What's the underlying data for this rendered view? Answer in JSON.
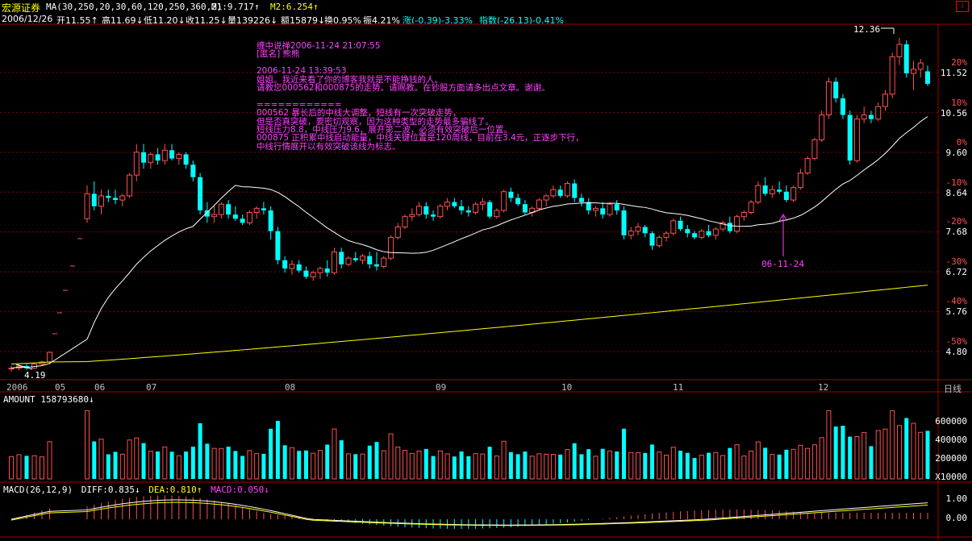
{
  "header": {
    "brand": "宏源证券",
    "ma_params": "MA(30,250,20,30,60,120,250,360,2)",
    "m1": "M1:9.717↑",
    "m2": "M2:6.254↑"
  },
  "quote": {
    "date": "2006/12/26",
    "open": "开11.55↑",
    "high": "高11.69↓",
    "low": "低11.20↓",
    "close": "收11.25↓",
    "volume": "量139226↓",
    "amount": "额15879↓",
    "turnover": "换0.95%",
    "amplitude": "振4.21%",
    "change": "涨(-0.39)-3.33%",
    "index": "指数(-26.13)-0.41%"
  },
  "price_axis": {
    "pct": [
      "20%",
      "10%",
      "0%",
      "-10%",
      "-20%",
      "-30%",
      "-40%",
      "-50%"
    ],
    "price": [
      "11.52",
      "10.56",
      "9.60",
      "8.64",
      "7.68",
      "6.72",
      "5.76",
      "4.80"
    ]
  },
  "annotations": {
    "high_label": "12.36",
    "low_label": "4.19",
    "marker_label": "06-11-24"
  },
  "note_text": "缠中说禅2006-11-24 21:07:55\n[匿名] 熊熊\n\n2006-11-24 13:39:53\n姐姐。我近来看了你的博客我就是不能挣钱的人。\n请教您000562和000875的走势。请赐教。在钞股方面请多出点文章。谢谢。\n\n============\n000562 暴长后的中线大调整，短线有一次突破走势，\n但是否真突破，要密切观察，因为这种类型的走势最多骗线了。\n短线压力8.8，中线压力9.6，展开第二波，必须有效突破后一位置。\n000875 正积累中线启动能量，中线关键位置是120周线，目前在3.4元，正逐步下行，\n中线行情展开以有效突破该线为标志。",
  "time_axis": {
    "labels": [
      "2006",
      "05",
      "06",
      "07",
      "08",
      "09",
      "10",
      "11",
      "12"
    ],
    "period": "日线"
  },
  "volume_panel": {
    "title": "AMOUNT 158793680↓",
    "axis": [
      "600000",
      "400000",
      "200000"
    ],
    "unit": "X10000"
  },
  "macd_panel": {
    "params": "MACD(26,12,9)",
    "diff": "DIFF:0.835↓",
    "dea": "DEA:0.810↑",
    "macd": "MACD:0.050↓",
    "axis": [
      "1.00",
      "0.00"
    ]
  },
  "colors": {
    "up": "#ff5050",
    "down": "#00ffff",
    "ma1": "#ffffff",
    "ma2": "#ffff00",
    "grid": "#8b0000",
    "annotation": "#ff40ff"
  },
  "chart_data": {
    "type": "candlestick",
    "price_range": [
      4.19,
      12.36
    ],
    "ohlc_approx": [
      [
        4.38,
        4.45,
        4.32,
        4.4
      ],
      [
        4.4,
        4.5,
        4.35,
        4.45
      ],
      [
        4.45,
        4.5,
        4.36,
        4.4
      ],
      [
        4.4,
        4.52,
        4.38,
        4.5
      ],
      [
        4.5,
        4.58,
        4.45,
        4.55
      ],
      [
        4.55,
        4.8,
        4.5,
        4.78
      ],
      [
        8.0,
        8.8,
        7.9,
        8.6
      ],
      [
        8.6,
        8.9,
        8.2,
        8.3
      ],
      [
        8.3,
        8.7,
        8.1,
        8.55
      ],
      [
        8.55,
        8.7,
        8.4,
        8.5
      ],
      [
        8.5,
        8.7,
        8.35,
        8.45
      ],
      [
        8.45,
        8.6,
        8.3,
        8.55
      ],
      [
        8.55,
        9.1,
        8.5,
        9.05
      ],
      [
        9.05,
        9.8,
        8.9,
        9.6
      ],
      [
        9.6,
        9.8,
        9.2,
        9.35
      ],
      [
        9.35,
        9.6,
        9.2,
        9.55
      ],
      [
        9.55,
        9.7,
        9.3,
        9.4
      ],
      [
        9.4,
        9.8,
        9.3,
        9.65
      ],
      [
        9.65,
        9.8,
        9.4,
        9.45
      ],
      [
        9.45,
        9.6,
        9.3,
        9.55
      ],
      [
        9.55,
        9.6,
        9.2,
        9.3
      ],
      [
        9.3,
        9.4,
        8.9,
        9.0
      ],
      [
        9.0,
        9.1,
        8.1,
        8.2
      ],
      [
        8.2,
        8.4,
        7.9,
        8.05
      ],
      [
        8.05,
        8.3,
        7.9,
        8.1
      ],
      [
        8.1,
        8.4,
        8.0,
        8.35
      ],
      [
        8.35,
        8.45,
        8.0,
        8.1
      ],
      [
        8.1,
        8.3,
        7.95,
        8.0
      ],
      [
        8.0,
        8.1,
        7.85,
        7.9
      ],
      [
        7.9,
        8.2,
        7.85,
        8.15
      ],
      [
        8.15,
        8.3,
        8.0,
        8.25
      ],
      [
        8.25,
        8.4,
        8.1,
        8.2
      ],
      [
        8.2,
        8.3,
        7.5,
        7.7
      ],
      [
        7.7,
        7.8,
        6.9,
        7.0
      ],
      [
        7.0,
        7.1,
        6.7,
        6.8
      ],
      [
        6.8,
        7.0,
        6.65,
        6.9
      ],
      [
        6.9,
        7.0,
        6.7,
        6.75
      ],
      [
        6.75,
        6.85,
        6.55,
        6.6
      ],
      [
        6.6,
        6.75,
        6.5,
        6.7
      ],
      [
        6.7,
        6.85,
        6.55,
        6.8
      ],
      [
        6.8,
        7.0,
        6.6,
        6.7
      ],
      [
        6.7,
        7.3,
        6.65,
        7.2
      ],
      [
        7.2,
        7.3,
        6.8,
        6.9
      ],
      [
        6.9,
        7.1,
        6.85,
        7.05
      ],
      [
        7.05,
        7.2,
        6.95,
        7.0
      ],
      [
        7.0,
        7.15,
        6.9,
        7.1
      ],
      [
        7.1,
        7.2,
        6.8,
        6.9
      ],
      [
        6.9,
        7.2,
        6.75,
        6.85
      ],
      [
        6.85,
        7.1,
        6.8,
        7.05
      ],
      [
        7.05,
        7.6,
        7.0,
        7.55
      ],
      [
        7.55,
        7.9,
        7.5,
        7.8
      ],
      [
        7.8,
        8.1,
        7.75,
        8.05
      ],
      [
        8.05,
        8.25,
        7.95,
        8.1
      ],
      [
        8.1,
        8.4,
        8.05,
        8.3
      ],
      [
        8.3,
        8.4,
        8.0,
        8.1
      ],
      [
        8.1,
        8.2,
        7.95,
        8.05
      ],
      [
        8.05,
        8.35,
        8.0,
        8.3
      ],
      [
        8.3,
        8.5,
        8.2,
        8.4
      ],
      [
        8.4,
        8.5,
        8.25,
        8.3
      ],
      [
        8.3,
        8.45,
        8.1,
        8.2
      ],
      [
        8.2,
        8.3,
        8.05,
        8.15
      ],
      [
        8.15,
        8.4,
        8.1,
        8.35
      ],
      [
        8.35,
        8.5,
        8.2,
        8.4
      ],
      [
        8.4,
        8.45,
        8.0,
        8.05
      ],
      [
        8.05,
        8.25,
        8.0,
        8.2
      ],
      [
        8.2,
        8.7,
        8.15,
        8.65
      ],
      [
        8.65,
        8.75,
        8.4,
        8.5
      ],
      [
        8.5,
        8.6,
        8.3,
        8.35
      ],
      [
        8.35,
        8.45,
        8.1,
        8.15
      ],
      [
        8.15,
        8.3,
        8.05,
        8.25
      ],
      [
        8.25,
        8.5,
        8.2,
        8.45
      ],
      [
        8.45,
        8.6,
        8.3,
        8.55
      ],
      [
        8.55,
        8.8,
        8.5,
        8.7
      ],
      [
        8.7,
        8.8,
        8.5,
        8.55
      ],
      [
        8.55,
        8.9,
        8.5,
        8.85
      ],
      [
        8.85,
        8.95,
        8.4,
        8.5
      ],
      [
        8.5,
        8.6,
        8.3,
        8.4
      ],
      [
        8.4,
        8.5,
        8.1,
        8.2
      ],
      [
        8.2,
        8.3,
        8.05,
        8.25
      ],
      [
        8.25,
        8.4,
        8.0,
        8.1
      ],
      [
        8.1,
        8.4,
        8.05,
        8.35
      ],
      [
        8.35,
        8.45,
        8.1,
        8.2
      ],
      [
        8.2,
        8.3,
        7.5,
        7.6
      ],
      [
        7.6,
        7.8,
        7.5,
        7.7
      ],
      [
        7.7,
        7.9,
        7.6,
        7.8
      ],
      [
        7.8,
        7.85,
        7.55,
        7.65
      ],
      [
        7.65,
        7.7,
        7.25,
        7.35
      ],
      [
        7.35,
        7.6,
        7.3,
        7.55
      ],
      [
        7.55,
        7.7,
        7.45,
        7.65
      ],
      [
        7.65,
        8.0,
        7.6,
        7.95
      ],
      [
        7.95,
        8.05,
        7.7,
        7.75
      ],
      [
        7.75,
        7.85,
        7.55,
        7.65
      ],
      [
        7.65,
        7.7,
        7.5,
        7.55
      ],
      [
        7.55,
        7.75,
        7.5,
        7.7
      ],
      [
        7.7,
        7.85,
        7.55,
        7.6
      ],
      [
        7.6,
        7.8,
        7.5,
        7.75
      ],
      [
        7.75,
        7.95,
        7.7,
        7.9
      ],
      [
        7.9,
        8.05,
        7.65,
        7.7
      ],
      [
        7.7,
        8.1,
        7.65,
        8.05
      ],
      [
        8.05,
        8.2,
        7.95,
        8.15
      ],
      [
        8.15,
        8.45,
        8.1,
        8.4
      ],
      [
        8.4,
        8.9,
        8.35,
        8.8
      ],
      [
        8.8,
        9.0,
        8.55,
        8.6
      ],
      [
        8.6,
        8.8,
        8.5,
        8.7
      ],
      [
        8.7,
        8.9,
        8.6,
        8.65
      ],
      [
        8.65,
        8.8,
        8.4,
        8.45
      ],
      [
        8.45,
        8.8,
        8.4,
        8.75
      ],
      [
        8.75,
        9.2,
        8.7,
        9.1
      ],
      [
        9.1,
        9.5,
        9.05,
        9.45
      ],
      [
        9.45,
        9.95,
        9.4,
        9.9
      ],
      [
        9.9,
        10.6,
        9.85,
        10.5
      ],
      [
        10.5,
        11.4,
        10.4,
        11.3
      ],
      [
        11.3,
        11.4,
        10.8,
        10.9
      ],
      [
        10.9,
        11.0,
        10.4,
        10.5
      ],
      [
        10.5,
        10.6,
        9.3,
        9.4
      ],
      [
        9.4,
        10.5,
        9.35,
        10.4
      ],
      [
        10.4,
        10.7,
        10.3,
        10.5
      ],
      [
        10.5,
        10.6,
        10.3,
        10.4
      ],
      [
        10.4,
        10.8,
        10.35,
        10.7
      ],
      [
        10.7,
        11.1,
        10.6,
        11.0
      ],
      [
        11.0,
        12.0,
        10.9,
        11.9
      ],
      [
        11.9,
        12.36,
        11.7,
        12.2
      ],
      [
        12.2,
        12.3,
        11.4,
        11.5
      ],
      [
        11.5,
        11.8,
        11.1,
        11.6
      ],
      [
        11.6,
        11.85,
        11.4,
        11.75
      ],
      [
        11.55,
        11.69,
        11.2,
        11.25
      ]
    ]
  }
}
